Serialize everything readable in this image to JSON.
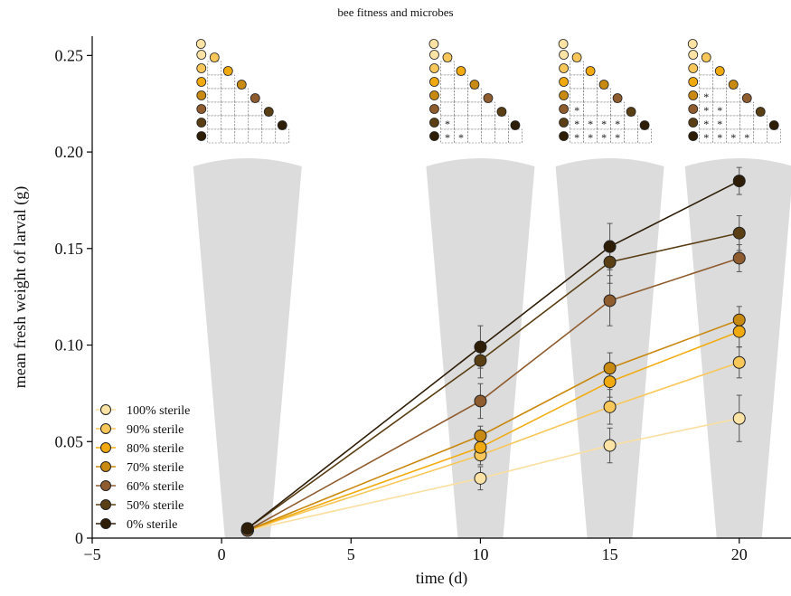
{
  "figure_title": "bee fitness and microbes",
  "chart_data": {
    "type": "line",
    "title": "",
    "xlabel": "time (d)",
    "ylabel": "mean fresh weight of larval (g)",
    "xlim": [
      -5,
      22
    ],
    "ylim": [
      0,
      0.26
    ],
    "xticks": [
      -5,
      0,
      5,
      10,
      15,
      20
    ],
    "xtick_labels": [
      "−5",
      "0",
      "5",
      "10",
      "15",
      "20"
    ],
    "yticks": [
      0,
      0.05,
      0.1,
      0.15,
      0.2,
      0.25
    ],
    "ytick_labels": [
      "0",
      "0.05",
      "0.10",
      "0.15",
      "0.20",
      "0.25"
    ],
    "grid": false,
    "legend_position": "bottom-left",
    "x": [
      1,
      10,
      15,
      20
    ],
    "series": [
      {
        "name": "100% sterile",
        "color": "#f9dfa0",
        "fill": "#fbe3a6",
        "values": [
          0.004,
          0.031,
          0.048,
          0.062
        ],
        "err": [
          0.001,
          0.006,
          0.009,
          0.012
        ]
      },
      {
        "name": "90% sterile",
        "color": "#f8c75a",
        "fill": "#f7c75a",
        "values": [
          0.004,
          0.043,
          0.068,
          0.091
        ],
        "err": [
          0.001,
          0.005,
          0.009,
          0.008
        ]
      },
      {
        "name": "80% sterile",
        "color": "#f2ac12",
        "fill": "#f0a90f",
        "values": [
          0.004,
          0.047,
          0.081,
          0.107
        ],
        "err": [
          0.001,
          0.005,
          0.008,
          0.008
        ]
      },
      {
        "name": "70% sterile",
        "color": "#c9880f",
        "fill": "#c88a12",
        "values": [
          0.004,
          0.053,
          0.088,
          0.113
        ],
        "err": [
          0.001,
          0.005,
          0.008,
          0.007
        ]
      },
      {
        "name": "60% sterile",
        "color": "#8f5c30",
        "fill": "#8f5c30",
        "values": [
          0.004,
          0.071,
          0.123,
          0.145
        ],
        "err": [
          0.001,
          0.009,
          0.013,
          0.007
        ]
      },
      {
        "name": "50% sterile",
        "color": "#5a3f14",
        "fill": "#5a3f14",
        "values": [
          0.005,
          0.092,
          0.143,
          0.158
        ],
        "err": [
          0.001,
          0.009,
          0.011,
          0.009
        ]
      },
      {
        "name": "0% sterile",
        "color": "#2e1e08",
        "fill": "#2e1e08",
        "values": [
          0.005,
          0.099,
          0.151,
          0.185
        ],
        "err": [
          0.001,
          0.011,
          0.012,
          0.007
        ]
      }
    ],
    "significance_insets": [
      {
        "x": 1,
        "stars": []
      },
      {
        "x": 10,
        "stars": [
          [
            5,
            1
          ],
          [
            6,
            1
          ],
          [
            6,
            2
          ]
        ]
      },
      {
        "x": 15,
        "stars": [
          [
            4,
            1
          ],
          [
            5,
            1
          ],
          [
            5,
            2
          ],
          [
            5,
            3
          ],
          [
            5,
            4
          ],
          [
            6,
            1
          ],
          [
            6,
            2
          ],
          [
            6,
            3
          ],
          [
            6,
            4
          ]
        ]
      },
      {
        "x": 20,
        "stars": [
          [
            3,
            1
          ],
          [
            4,
            1
          ],
          [
            4,
            2
          ],
          [
            5,
            1
          ],
          [
            5,
            2
          ],
          [
            6,
            1
          ],
          [
            6,
            2
          ],
          [
            6,
            3
          ],
          [
            6,
            4
          ]
        ]
      }
    ],
    "star_symbol": "*"
  }
}
